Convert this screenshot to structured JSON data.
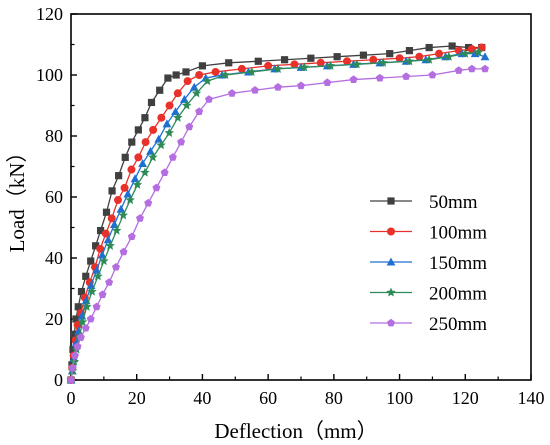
{
  "chart_data": {
    "type": "line",
    "xlabel": "Deflection（mm）",
    "ylabel": "Load（kN）",
    "xlim": [
      0,
      140
    ],
    "ylim": [
      0,
      120
    ],
    "xticks": [
      "0",
      "20",
      "40",
      "60",
      "80",
      "100",
      "120",
      "140"
    ],
    "yticks": [
      "0",
      "20",
      "40",
      "60",
      "80",
      "100",
      "120"
    ],
    "grid": false,
    "legend_position": "bottom-right",
    "series": [
      {
        "name": "50mm",
        "color": "#404040",
        "marker": "square",
        "x": [
          0,
          0.3,
          0.6,
          1.0,
          1.5,
          2.2,
          3.2,
          4.5,
          6.0,
          7.5,
          9.0,
          10.8,
          12.5,
          14.5,
          16.5,
          18.5,
          20.5,
          22.5,
          24.5,
          27.0,
          29.5,
          32.0,
          35.0,
          40.0,
          48.0,
          57.0,
          65.0,
          73.0,
          81.0,
          89.0,
          97.0,
          103.0,
          109.0,
          116.0,
          121.0,
          125.0
        ],
        "y": [
          0,
          5,
          10,
          15,
          20,
          24,
          29,
          34,
          39,
          44,
          49,
          55,
          62,
          67,
          73,
          78,
          82,
          86,
          91,
          95,
          99,
          100,
          101,
          103,
          104,
          104.5,
          105,
          105.5,
          106,
          106.5,
          107,
          108,
          109,
          109.5,
          109,
          109
        ]
      },
      {
        "name": "100mm",
        "color": "#e8312a",
        "marker": "circle",
        "x": [
          0,
          0.4,
          0.8,
          1.3,
          2.0,
          3.0,
          4.2,
          5.7,
          7.3,
          8.9,
          10.6,
          12.4,
          14.3,
          16.3,
          18.4,
          20.5,
          22.7,
          25.0,
          27.5,
          30.0,
          32.5,
          35.5,
          39.0,
          44.0,
          52.0,
          60.0,
          68.0,
          76.0,
          84.0,
          92.0,
          100.0,
          106.0,
          112.0,
          118.0,
          122.0,
          125.0
        ],
        "y": [
          0,
          4,
          8,
          13,
          18,
          22,
          27,
          32,
          37,
          43,
          48,
          53,
          59,
          63,
          69,
          73,
          78,
          82,
          86,
          90,
          94,
          98,
          100,
          101,
          102,
          103,
          103.5,
          104,
          104.5,
          105,
          105.5,
          106,
          107,
          108,
          108.5,
          109
        ]
      },
      {
        "name": "150mm",
        "color": "#1f6fd1",
        "marker": "triangle",
        "x": [
          0,
          0.4,
          0.9,
          1.5,
          2.3,
          3.3,
          4.6,
          6.1,
          7.8,
          9.5,
          11.3,
          13.2,
          15.2,
          17.3,
          19.5,
          21.8,
          24.2,
          26.7,
          29.2,
          31.8,
          34.5,
          37.5,
          41.0,
          46.0,
          54.0,
          62.0,
          70.0,
          78.0,
          86.0,
          94.0,
          102.0,
          108.0,
          114.0,
          119.0,
          123.0,
          126.0
        ],
        "y": [
          0,
          3,
          7,
          12,
          16,
          21,
          26,
          31,
          36,
          41,
          46,
          51,
          56,
          61,
          66,
          71,
          75,
          79,
          84,
          88,
          92,
          96,
          99,
          100,
          101,
          102,
          102.5,
          103,
          103.5,
          104,
          104.5,
          105,
          106,
          107,
          107,
          106
        ]
      },
      {
        "name": "200mm",
        "color": "#2e8b57",
        "marker": "star",
        "x": [
          0,
          0.5,
          1.0,
          1.7,
          2.5,
          3.5,
          4.8,
          6.4,
          8.2,
          10.0,
          11.9,
          13.9,
          15.9,
          18.0,
          20.2,
          22.5,
          24.9,
          27.4,
          29.9,
          32.5,
          35.2,
          38.2,
          41.5,
          47.0,
          55.0,
          63.0,
          71.0,
          79.0,
          87.0,
          95.0,
          103.0,
          109.0,
          115.0,
          120.0,
          124.0
        ],
        "y": [
          0,
          3,
          6,
          10,
          14,
          19,
          24,
          29,
          34,
          39,
          44,
          49,
          54,
          59,
          64,
          68,
          73,
          77,
          81,
          86,
          90,
          94,
          98,
          100,
          101,
          102,
          102.5,
          103,
          103.5,
          104,
          104.5,
          105,
          106,
          107,
          107.5
        ]
      },
      {
        "name": "250mm",
        "color": "#b46ee0",
        "marker": "pentagon",
        "x": [
          0,
          0.5,
          1.2,
          2.0,
          3.0,
          4.5,
          6.0,
          7.8,
          9.6,
          11.6,
          13.7,
          16.0,
          18.5,
          21.0,
          23.5,
          26.0,
          28.5,
          31.0,
          33.5,
          36.0,
          39.0,
          42.0,
          49.0,
          56.0,
          63.0,
          70.0,
          78.0,
          86.0,
          94.0,
          102.0,
          110.0,
          118.0,
          122.0,
          126.0
        ],
        "y": [
          0,
          4,
          8,
          11,
          14,
          17,
          20,
          24,
          28,
          32,
          37,
          42,
          47,
          53,
          58,
          63,
          68,
          73,
          78,
          83,
          88,
          92,
          94,
          95,
          96,
          96.5,
          97.5,
          98.5,
          99,
          99.5,
          100,
          101.5,
          102,
          102
        ]
      }
    ]
  }
}
